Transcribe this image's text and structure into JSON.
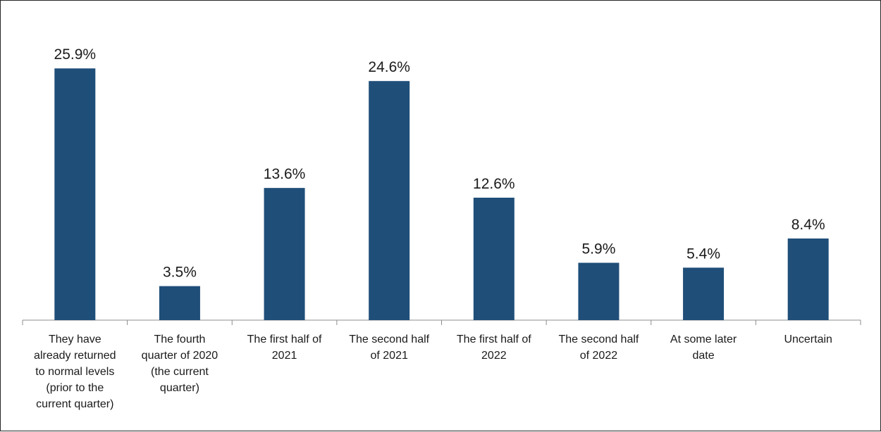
{
  "chart_data": {
    "type": "bar",
    "categories": [
      "They have already returned to normal levels (prior to the current quarter)",
      "The fourth quarter of 2020 (the current quarter)",
      "The first half of 2021",
      "The second half of 2021",
      "The first half of 2022",
      "The second half of 2022",
      "At some later date",
      "Uncertain"
    ],
    "category_lines": [
      [
        "They have",
        "already returned",
        "to normal levels",
        "(prior to the",
        "current quarter)"
      ],
      [
        "The fourth",
        "quarter of 2020",
        "(the current",
        "quarter)"
      ],
      [
        "The first half of",
        "2021"
      ],
      [
        "The second half",
        "of 2021"
      ],
      [
        "The first half of",
        "2022"
      ],
      [
        "The second half",
        "of 2022"
      ],
      [
        "At some later",
        "date"
      ],
      [
        "Uncertain"
      ]
    ],
    "values": [
      25.9,
      3.5,
      13.6,
      24.6,
      12.6,
      5.9,
      5.4,
      8.4
    ],
    "data_labels": [
      "25.9%",
      "3.5%",
      "13.6%",
      "24.6%",
      "12.6%",
      "5.9%",
      "5.4%",
      "8.4%"
    ],
    "title": "",
    "xlabel": "",
    "ylabel": "",
    "ylim": [
      0,
      27.8
    ],
    "grid": false,
    "legend": "none",
    "bar_color": "#1F4E79",
    "axis_color": "#8c8c8c"
  }
}
